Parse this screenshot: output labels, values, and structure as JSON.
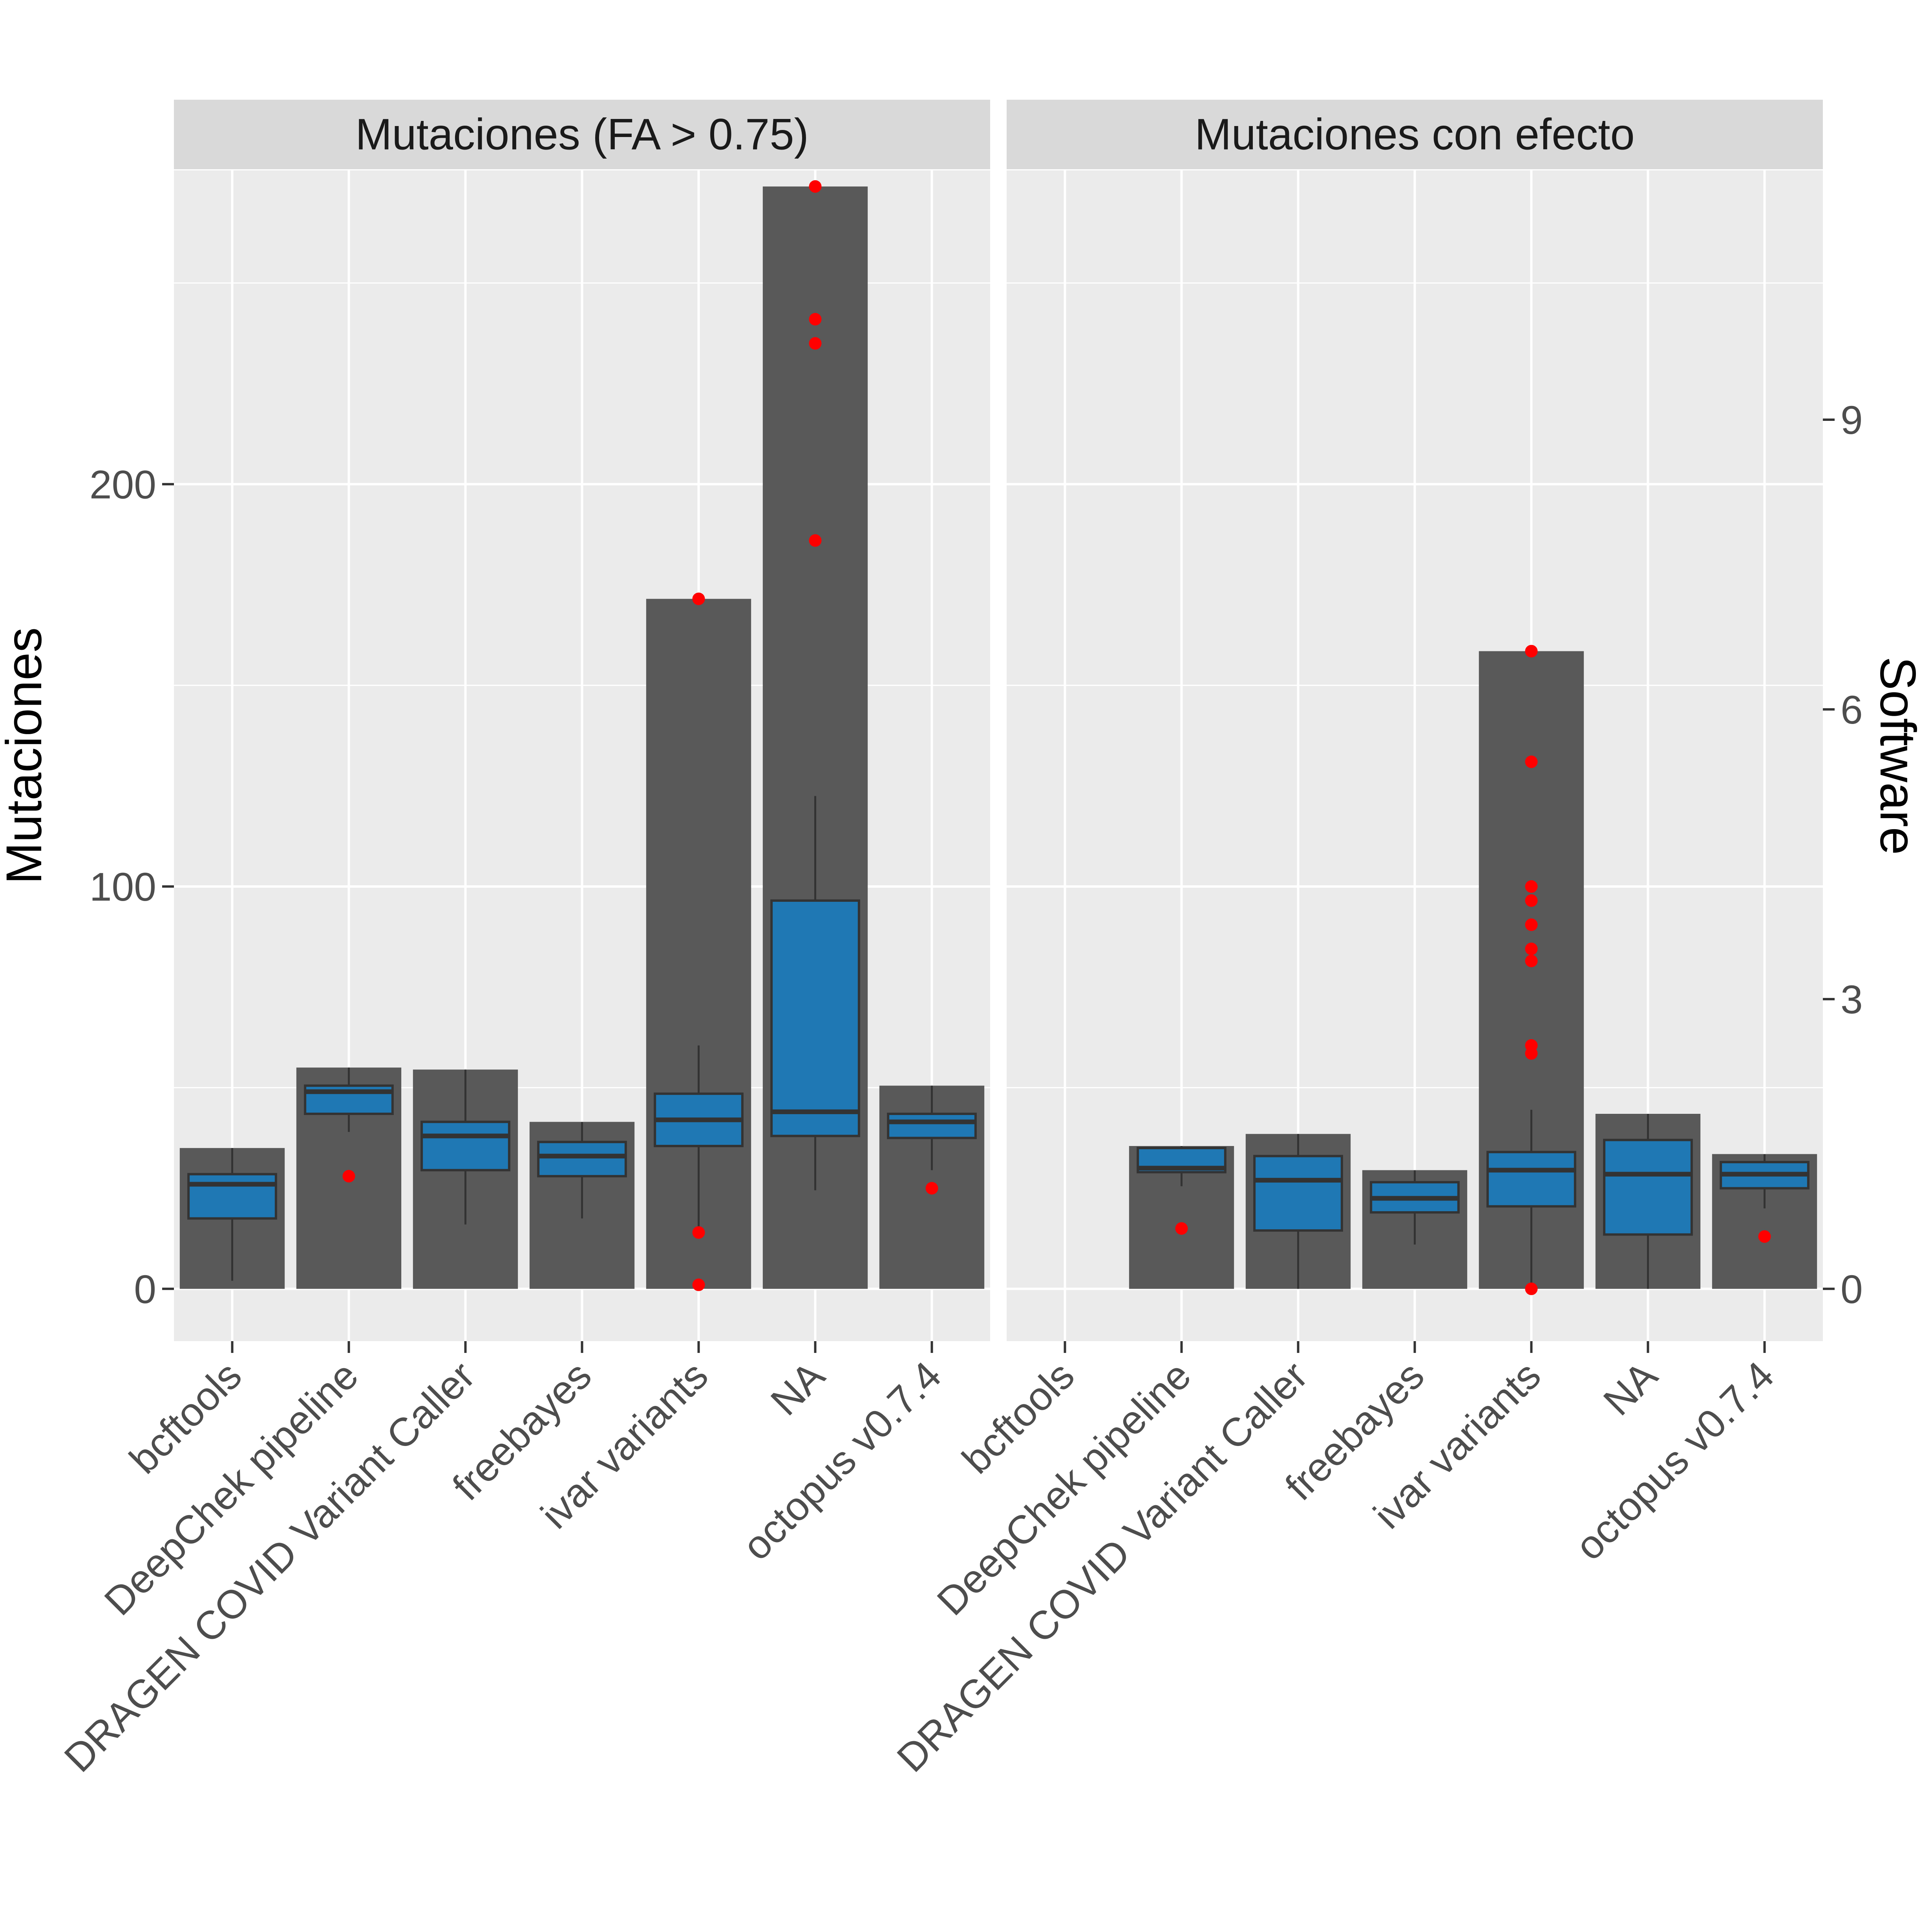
{
  "chart_data": {
    "type": "bar+boxplot",
    "ylabel": "Mutaciones",
    "ylabel_right": "Software",
    "ylim": [
      -13,
      278
    ],
    "y_ticks": [
      0,
      100,
      200
    ],
    "y_ticks_right": [
      0,
      3,
      6,
      9
    ],
    "right_axis_ratio": 0.04166,
    "categories": [
      "bcftools",
      "DeepChek pipeline",
      "DRAGEN COVID Variant Caller",
      "freebayes",
      "ivar variants",
      "NA",
      "octopus v0.7.4"
    ],
    "colors": {
      "bar": "#595959",
      "box": "#1f78b4",
      "outlier": "#ff0000",
      "panel": "#ebebeb",
      "strip": "#d9d9d9",
      "grid": "#ffffff"
    },
    "panels": [
      {
        "title": "Mutaciones (FA > 0.75)",
        "bars": [
          35,
          55,
          54.5,
          41.5,
          171.5,
          274,
          50.5
        ],
        "boxes": [
          {
            "min": 2,
            "q1": 17.5,
            "median": 26,
            "q3": 28.5,
            "max": 35,
            "outliers": []
          },
          {
            "min": 39,
            "q1": 43.5,
            "median": 49,
            "q3": 50.5,
            "max": 55,
            "outliers": [
              28
            ]
          },
          {
            "min": 16,
            "q1": 29.5,
            "median": 38,
            "q3": 41.5,
            "max": 54.5,
            "outliers": []
          },
          {
            "min": 17.5,
            "q1": 28,
            "median": 33,
            "q3": 36.5,
            "max": 41.5,
            "outliers": []
          },
          {
            "min": 14.5,
            "q1": 35.5,
            "median": 42,
            "q3": 48.5,
            "max": 60.5,
            "outliers": [
              171.5,
              14,
              1
            ]
          },
          {
            "min": 24.5,
            "q1": 38,
            "median": 44,
            "q3": 96.5,
            "max": 122.5,
            "outliers": [
              274,
              241,
              235,
              186
            ]
          },
          {
            "min": 29.5,
            "q1": 37.5,
            "median": 41.5,
            "q3": 43.5,
            "max": 50.5,
            "outliers": [
              25
            ]
          }
        ]
      },
      {
        "title": "Mutaciones con efecto",
        "bars": [
          null,
          35.5,
          38.5,
          29.5,
          158.5,
          43.5,
          33.5
        ],
        "boxes": [
          null,
          {
            "min": 25.5,
            "q1": 29,
            "median": 30,
            "q3": 35,
            "max": 35.5,
            "outliers": [
              15
            ]
          },
          {
            "min": 0,
            "q1": 14.5,
            "median": 27,
            "q3": 33,
            "max": 38.5,
            "outliers": []
          },
          {
            "min": 11,
            "q1": 19,
            "median": 22.5,
            "q3": 26.5,
            "max": 29.5,
            "outliers": []
          },
          {
            "min": 0.5,
            "q1": 20.5,
            "median": 29.5,
            "q3": 34,
            "max": 44.5,
            "outliers": [
              158.5,
              131,
              100,
              96.5,
              90.5,
              84.5,
              81.5,
              60.5,
              58.5,
              0
            ]
          },
          {
            "min": 0,
            "q1": 13.5,
            "median": 28.5,
            "q3": 37,
            "max": 43.5,
            "outliers": []
          },
          {
            "min": 20,
            "q1": 25,
            "median": 28.5,
            "q3": 31.5,
            "max": 33.5,
            "outliers": [
              13
            ]
          }
        ]
      }
    ]
  }
}
